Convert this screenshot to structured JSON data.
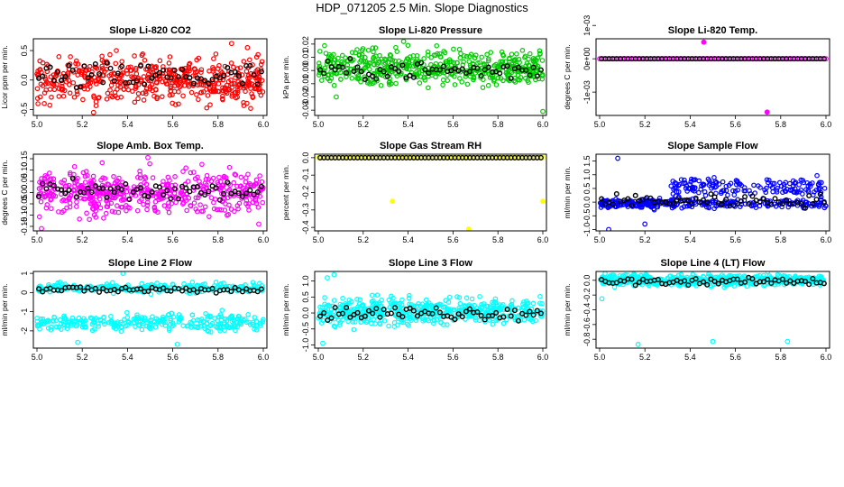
{
  "main_title": "HDP_071205  2.5 Min. Slope Diagnostics",
  "chart_data": [
    {
      "type": "scatter",
      "title": "Slope Li-820 CO2",
      "xlabel": "",
      "ylabel": "Licor ppm per min.",
      "xlim": [
        5.0,
        6.0
      ],
      "ylim": [
        -0.6,
        0.7
      ],
      "xticks": [
        "5.0",
        "5.2",
        "5.4",
        "5.6",
        "5.8",
        "6.0"
      ],
      "yticks": [
        "-0.5",
        "0.0",
        "0.5"
      ],
      "colors": {
        "main": "#ff0000",
        "overlay": "#000000"
      },
      "main_band": [
        -0.5,
        0.5
      ],
      "overlay_band": [
        -0.3,
        0.4
      ],
      "outliers": [
        [
          5.86,
          0.62
        ],
        [
          5.93,
          0.55
        ],
        [
          5.8,
          -0.68
        ],
        [
          5.25,
          -0.55
        ]
      ]
    },
    {
      "type": "scatter",
      "title": "Slope Li-820 Pressure",
      "xlabel": "",
      "ylabel": "kPa per min.",
      "xlim": [
        5.0,
        6.0
      ],
      "ylim": [
        -0.034,
        0.024
      ],
      "xticks": [
        "5.0",
        "5.2",
        "5.4",
        "5.6",
        "5.8",
        "6.0"
      ],
      "yticks": [
        "-0.03",
        "-0.02",
        "-0.01",
        "0.00",
        "0.01",
        "0.02"
      ],
      "colors": {
        "main": "#00cc00",
        "overlay": "#000000"
      },
      "main_band": [
        -0.015,
        0.02
      ],
      "overlay_band": [
        -0.01,
        0.01
      ],
      "outliers": [
        [
          6.0,
          -0.031
        ],
        [
          5.38,
          0.022
        ],
        [
          5.08,
          -0.02
        ]
      ]
    },
    {
      "type": "scatter",
      "title": "Slope Li-820 Temp.",
      "xlabel": "",
      "ylabel": "degrees C per min.",
      "xlim": [
        5.0,
        6.0
      ],
      "ylim": [
        -0.00017,
        6e-05
      ],
      "xticks": [
        "5.0",
        "5.2",
        "5.4",
        "5.6",
        "5.8",
        "6.0"
      ],
      "yticks": [
        "-1e-03",
        "0e+00",
        "1e-03"
      ],
      "colors": {
        "main": "#ff00ff",
        "overlay": "#000000"
      },
      "main_band": [
        0,
        0
      ],
      "overlay_band": [
        0,
        0
      ],
      "outliers": [
        [
          5.46,
          5e-05
        ],
        [
          5.74,
          -0.00016
        ]
      ]
    },
    {
      "type": "scatter",
      "title": "Slope Amb. Box Temp.",
      "xlabel": "",
      "ylabel": "degrees C per min.",
      "xlim": [
        5.0,
        6.0
      ],
      "ylim": [
        -0.17,
        0.17
      ],
      "xticks": [
        "5.0",
        "5.2",
        "5.4",
        "5.6",
        "5.8",
        "6.0"
      ],
      "yticks": [
        "-0.15",
        "-0.10",
        "-0.05",
        "0.00",
        "0.05",
        "0.10",
        "0.15"
      ],
      "colors": {
        "main": "#ff00ff",
        "overlay": "#000000"
      },
      "main_band": [
        -0.12,
        0.12
      ],
      "overlay_band": [
        -0.07,
        0.08
      ],
      "outliers": [
        [
          5.49,
          0.155
        ],
        [
          5.02,
          -0.16
        ],
        [
          5.98,
          -0.14
        ]
      ]
    },
    {
      "type": "scatter",
      "title": "Slope Gas Stream RH",
      "xlabel": "",
      "ylabel": "percent per min.",
      "xlim": [
        5.0,
        6.0
      ],
      "ylim": [
        -0.42,
        0.02
      ],
      "xticks": [
        "5.0",
        "5.2",
        "5.4",
        "5.6",
        "5.8",
        "6.0"
      ],
      "yticks": [
        "-0.4",
        "-0.3",
        "-0.2",
        "-0.1",
        "0.0"
      ],
      "colors": {
        "main": "#ffff00",
        "overlay": "#000000"
      },
      "main_band": [
        0,
        0
      ],
      "overlay_band": [
        0,
        0
      ],
      "outliers": [
        [
          5.33,
          -0.25
        ],
        [
          5.67,
          -0.41
        ],
        [
          6.0,
          -0.25
        ]
      ]
    },
    {
      "type": "scatter",
      "title": "Slope Sample Flow",
      "xlabel": "",
      "ylabel": "ml/min per min.",
      "xlim": [
        5.0,
        6.0
      ],
      "ylim": [
        -1.05,
        1.75
      ],
      "xticks": [
        "5.0",
        "5.2",
        "5.4",
        "5.6",
        "5.8",
        "6.0"
      ],
      "yticks": [
        "-1.0",
        "-0.5",
        "0.0",
        "0.5",
        "1.0",
        "1.5"
      ],
      "colors": {
        "main": "#0000ff",
        "overlay": "#000000"
      },
      "main_band": [
        -0.4,
        1.2
      ],
      "overlay_band": [
        -0.3,
        0.4
      ],
      "outliers": [
        [
          5.08,
          1.6
        ],
        [
          5.04,
          -1.0
        ],
        [
          5.2,
          -0.8
        ]
      ]
    },
    {
      "type": "scatter",
      "title": "Slope Line 2 Flow",
      "xlabel": "",
      "ylabel": "ml/min per min.",
      "xlim": [
        5.0,
        6.0
      ],
      "ylim": [
        -2.9,
        1.1
      ],
      "xticks": [
        "5.0",
        "5.2",
        "5.4",
        "5.6",
        "5.8",
        "6.0"
      ],
      "yticks": [
        "-2",
        "-1",
        "0",
        "1"
      ],
      "colors": {
        "main": "#00ffff",
        "overlay": "#000000"
      },
      "main_band": [
        -2.3,
        0.8
      ],
      "overlay_band": [
        -0.1,
        0.4
      ],
      "outliers": [
        [
          5.38,
          1.0
        ],
        [
          5.18,
          -2.6
        ],
        [
          5.62,
          -2.7
        ]
      ]
    },
    {
      "type": "scatter",
      "title": "Slope Line 3 Flow",
      "xlabel": "",
      "ylabel": "ml/min per min.",
      "xlim": [
        5.0,
        6.0
      ],
      "ylim": [
        -1.1,
        1.3
      ],
      "xticks": [
        "5.0",
        "5.2",
        "5.4",
        "5.6",
        "5.8",
        "6.0"
      ],
      "yticks": [
        "-1.0",
        "-0.5",
        "0.0",
        "0.5",
        "1.0"
      ],
      "colors": {
        "main": "#00ffff",
        "overlay": "#000000"
      },
      "main_band": [
        -0.5,
        0.6
      ],
      "overlay_band": [
        -0.3,
        0.3
      ],
      "outliers": [
        [
          5.07,
          1.2
        ],
        [
          5.02,
          -0.95
        ],
        [
          5.04,
          1.1
        ]
      ]
    },
    {
      "type": "scatter",
      "title": "Slope Line 4 (LT) Flow",
      "xlabel": "",
      "ylabel": "ml/min per min.",
      "xlim": [
        5.0,
        6.0
      ],
      "ylim": [
        -0.92,
        0.12
      ],
      "xticks": [
        "5.0",
        "5.2",
        "5.4",
        "5.6",
        "5.8",
        "6.0"
      ],
      "yticks": [
        "-0.8",
        "-0.6",
        "-0.4",
        "-0.2",
        "0.0"
      ],
      "colors": {
        "main": "#00ffff",
        "overlay": "#000000"
      },
      "main_band": [
        -0.1,
        0.1
      ],
      "overlay_band": [
        -0.08,
        0.05
      ],
      "outliers": [
        [
          5.17,
          -0.87
        ],
        [
          5.5,
          -0.83
        ],
        [
          5.83,
          -0.83
        ],
        [
          5.01,
          -0.25
        ]
      ]
    }
  ]
}
